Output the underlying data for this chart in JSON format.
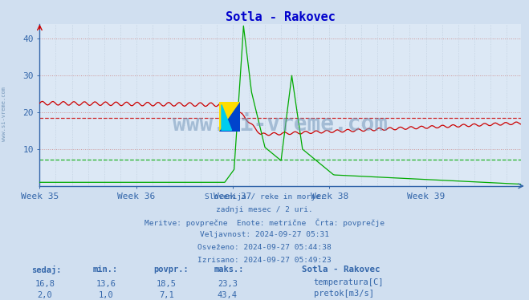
{
  "title": "Sotla - Rakovec",
  "title_color": "#0000cc",
  "bg_color": "#d0dff0",
  "plot_bg_color": "#dce8f5",
  "axis_color": "#3366aa",
  "xlabel_weeks": [
    "Week 35",
    "Week 36",
    "Week 37",
    "Week 38",
    "Week 39"
  ],
  "ylim": [
    0,
    44
  ],
  "yticks": [
    10,
    20,
    30,
    40
  ],
  "temp_avg": 18.5,
  "flow_avg": 7.1,
  "temp_color": "#cc0000",
  "flow_color": "#00aa00",
  "watermark": "www.si-vreme.com",
  "watermark_color": "#7799bb",
  "sidebar_text": "www.si-vreme.com",
  "footer_lines": [
    "Slovenija / reke in morje.",
    "zadnji mesec / 2 uri.",
    "Meritve: povprečne  Enote: metrične  Črta: povprečje",
    "Veljavnost: 2024-09-27 05:31",
    "Osveženo: 2024-09-27 05:44:38",
    "Izrisano: 2024-09-27 05:49:23"
  ],
  "table_headers": [
    "sedaj:",
    "min.:",
    "povpr.:",
    "maks.:"
  ],
  "table_row1": [
    "16,8",
    "13,6",
    "18,5",
    "23,3"
  ],
  "table_row2": [
    "2,0",
    "1,0",
    "7,1",
    "43,4"
  ],
  "legend_station": "Sotla - Rakovec",
  "legend_temp": "temperatura[C]",
  "legend_flow": "pretok[m3/s]",
  "n_points": 360,
  "week_ticks": [
    0,
    72,
    144,
    216,
    288
  ],
  "week37_idx": 144,
  "week38_idx": 216
}
